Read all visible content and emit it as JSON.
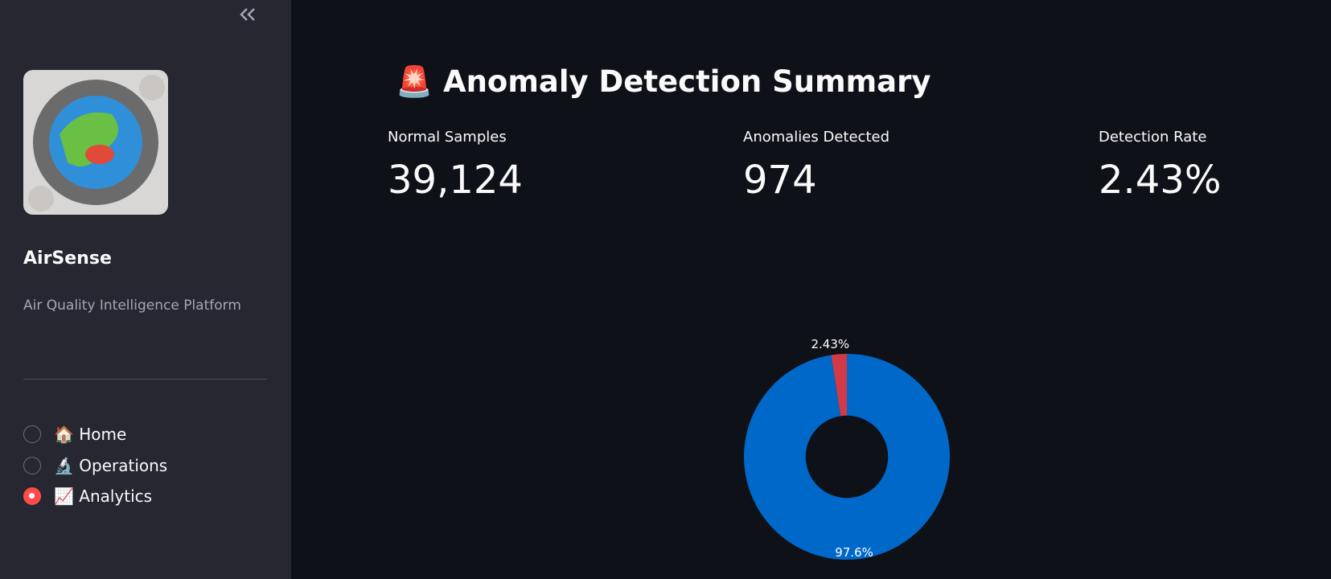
{
  "sidebar": {
    "title": "AirSense",
    "subtitle": "Air Quality Intelligence Platform",
    "nav": [
      {
        "label": "🏠 Home",
        "selected": false
      },
      {
        "label": "🔬 Operations",
        "selected": false
      },
      {
        "label": "📈 Analytics",
        "selected": true
      }
    ]
  },
  "main": {
    "heading": "🚨 Anomaly Detection Summary",
    "metrics": [
      {
        "label": "Normal Samples",
        "value": "39,124"
      },
      {
        "label": "Anomalies Detected",
        "value": "974"
      },
      {
        "label": "Detection Rate",
        "value": "2.43%"
      }
    ]
  },
  "chart_data": {
    "type": "pie",
    "values": [
      97.6,
      2.43
    ],
    "value_labels": [
      "97.6%",
      "2.43%"
    ],
    "colors": [
      "#0068c9",
      "#d33a47"
    ],
    "hole": 0.4
  }
}
